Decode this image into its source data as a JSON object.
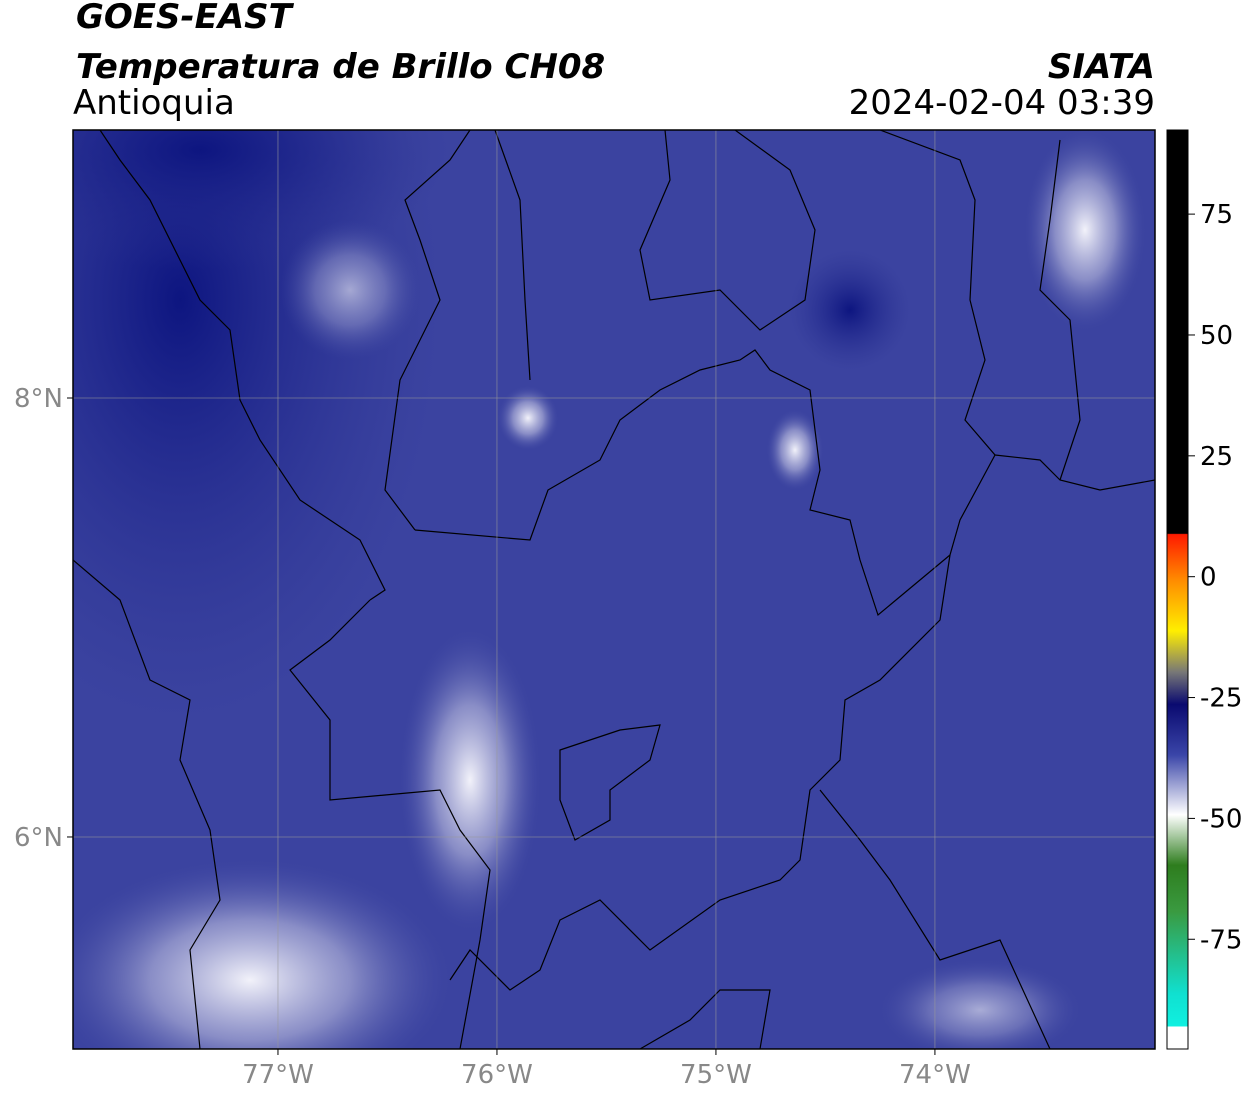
{
  "header": {
    "title": "GOES-EAST",
    "subtitle": "Temperatura de Brillo CH08",
    "region": "Antioquia",
    "source": "SIATA",
    "datetime": "2024-02-04 03:39"
  },
  "map": {
    "lonlim": [
      -77.936,
      -72.995
    ],
    "latlim": [
      5.034,
      9.221
    ],
    "lonticks": [
      {
        "value": -77,
        "label": "77°W"
      },
      {
        "value": -76,
        "label": "76°W"
      },
      {
        "value": -75,
        "label": "75°W"
      },
      {
        "value": -74,
        "label": "74°W"
      }
    ],
    "latticks": [
      {
        "value": 8,
        "label": "8°N"
      },
      {
        "value": 6,
        "label": "6°N"
      }
    ]
  },
  "colorbar": {
    "lim": [
      -97.7,
      92.4
    ],
    "ticks": [
      75,
      50,
      25,
      0,
      -25,
      -50,
      -75
    ]
  }
}
